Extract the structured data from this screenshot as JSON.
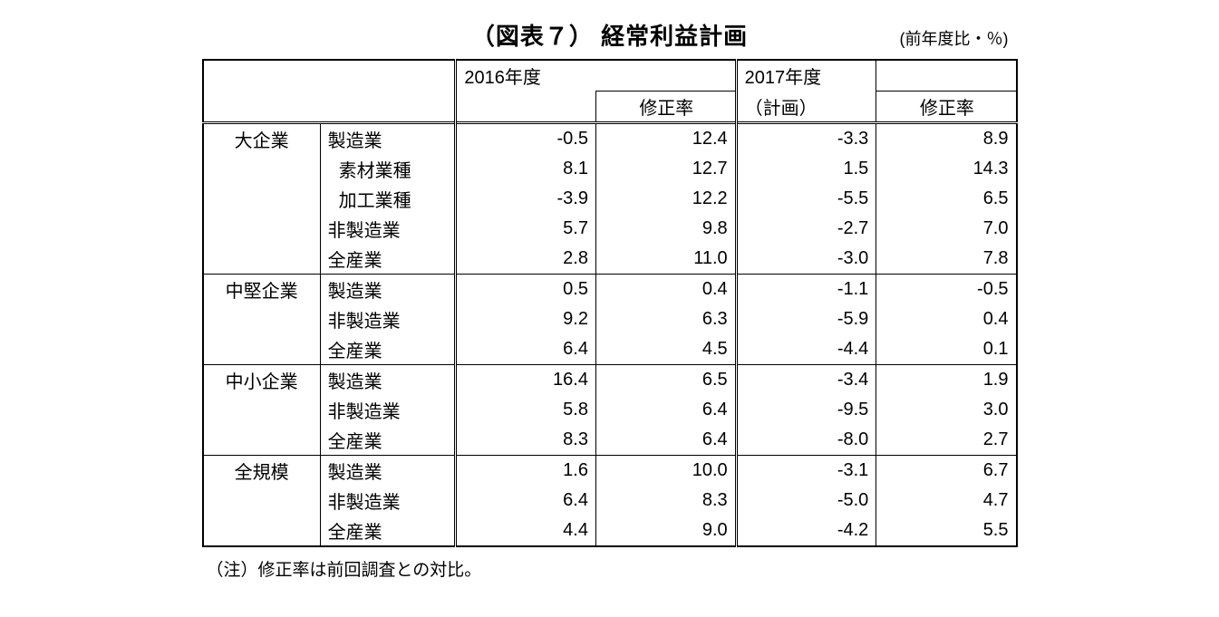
{
  "title": "（図表７） 経常利益計画",
  "unit": "(前年度比・％)",
  "header": {
    "period1": "2016年度",
    "period2_line1": "2017年度",
    "period2_line2": "（計画）",
    "revision": "修正率"
  },
  "footnote": "（注）修正率は前回調査との対比。",
  "groups": [
    {
      "name": "大企業",
      "rows": [
        {
          "label": "製造業",
          "indent": false,
          "v1": "-0.5",
          "r1": "12.4",
          "v2": "-3.3",
          "r2": "8.9"
        },
        {
          "label": "素材業種",
          "indent": true,
          "v1": "8.1",
          "r1": "12.7",
          "v2": "1.5",
          "r2": "14.3"
        },
        {
          "label": "加工業種",
          "indent": true,
          "v1": "-3.9",
          "r1": "12.2",
          "v2": "-5.5",
          "r2": "6.5"
        },
        {
          "label": "非製造業",
          "indent": false,
          "v1": "5.7",
          "r1": "9.8",
          "v2": "-2.7",
          "r2": "7.0"
        },
        {
          "label": "全産業",
          "indent": false,
          "v1": "2.8",
          "r1": "11.0",
          "v2": "-3.0",
          "r2": "7.8"
        }
      ]
    },
    {
      "name": "中堅企業",
      "rows": [
        {
          "label": "製造業",
          "indent": false,
          "v1": "0.5",
          "r1": "0.4",
          "v2": "-1.1",
          "r2": "-0.5"
        },
        {
          "label": "非製造業",
          "indent": false,
          "v1": "9.2",
          "r1": "6.3",
          "v2": "-5.9",
          "r2": "0.4"
        },
        {
          "label": "全産業",
          "indent": false,
          "v1": "6.4",
          "r1": "4.5",
          "v2": "-4.4",
          "r2": "0.1"
        }
      ]
    },
    {
      "name": "中小企業",
      "rows": [
        {
          "label": "製造業",
          "indent": false,
          "v1": "16.4",
          "r1": "6.5",
          "v2": "-3.4",
          "r2": "1.9"
        },
        {
          "label": "非製造業",
          "indent": false,
          "v1": "5.8",
          "r1": "6.4",
          "v2": "-9.5",
          "r2": "3.0"
        },
        {
          "label": "全産業",
          "indent": false,
          "v1": "8.3",
          "r1": "6.4",
          "v2": "-8.0",
          "r2": "2.7"
        }
      ]
    },
    {
      "name": "全規模",
      "rows": [
        {
          "label": "製造業",
          "indent": false,
          "v1": "1.6",
          "r1": "10.0",
          "v2": "-3.1",
          "r2": "6.7"
        },
        {
          "label": "非製造業",
          "indent": false,
          "v1": "6.4",
          "r1": "8.3",
          "v2": "-5.0",
          "r2": "4.7"
        },
        {
          "label": "全産業",
          "indent": false,
          "v1": "4.4",
          "r1": "9.0",
          "v2": "-4.2",
          "r2": "5.5"
        }
      ]
    }
  ],
  "style": {
    "background_color": "#ffffff",
    "text_color": "#000000",
    "border_color": "#000000",
    "title_fontsize": 26,
    "body_fontsize": 20,
    "unit_fontsize": 18,
    "footnote_fontsize": 19
  }
}
